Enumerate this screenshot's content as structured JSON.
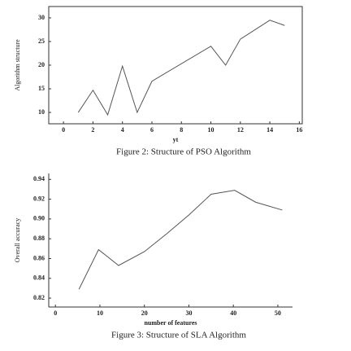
{
  "chart_data": [
    {
      "type": "line",
      "x_label": "yt",
      "y_label": "Algorithm structure",
      "caption": "Figure 2: Structure of PSO Algorithm",
      "x": [
        1,
        2,
        3,
        4,
        5,
        6,
        10,
        11,
        12,
        14,
        15
      ],
      "values": [
        10,
        14.7,
        9.5,
        19.8,
        10,
        16.6,
        24,
        20,
        25.5,
        29.5,
        28.4
      ],
      "color": "#555555",
      "xlim": [
        -1,
        16.2
      ],
      "ylim": [
        7.6,
        32.4
      ],
      "xticks": [
        0,
        2,
        4,
        6,
        8,
        10,
        12,
        14,
        16
      ],
      "yticks": [
        10,
        15,
        20,
        25,
        30
      ]
    },
    {
      "type": "line",
      "x_label": "number of features",
      "y_label": "Overall accuracy",
      "caption": "Figure 3: Structure of SLA Algorithm",
      "x": [
        5.3,
        9.7,
        14.2,
        20,
        25,
        30,
        35,
        40.3,
        45,
        51
      ],
      "values": [
        0.829,
        0.869,
        0.853,
        0.867,
        0.885,
        0.904,
        0.925,
        0.929,
        0.917,
        0.909
      ],
      "color": "#555555",
      "xlim": [
        -1.5,
        53.3
      ],
      "ylim": [
        0.811,
        0.946
      ],
      "xticks": [
        0,
        10,
        20,
        30,
        40,
        50
      ],
      "yticks": [
        0.82,
        0.84,
        0.86,
        0.88,
        {
          "value": 0.9,
          "label": "0.90"
        },
        0.92,
        0.94
      ]
    }
  ]
}
